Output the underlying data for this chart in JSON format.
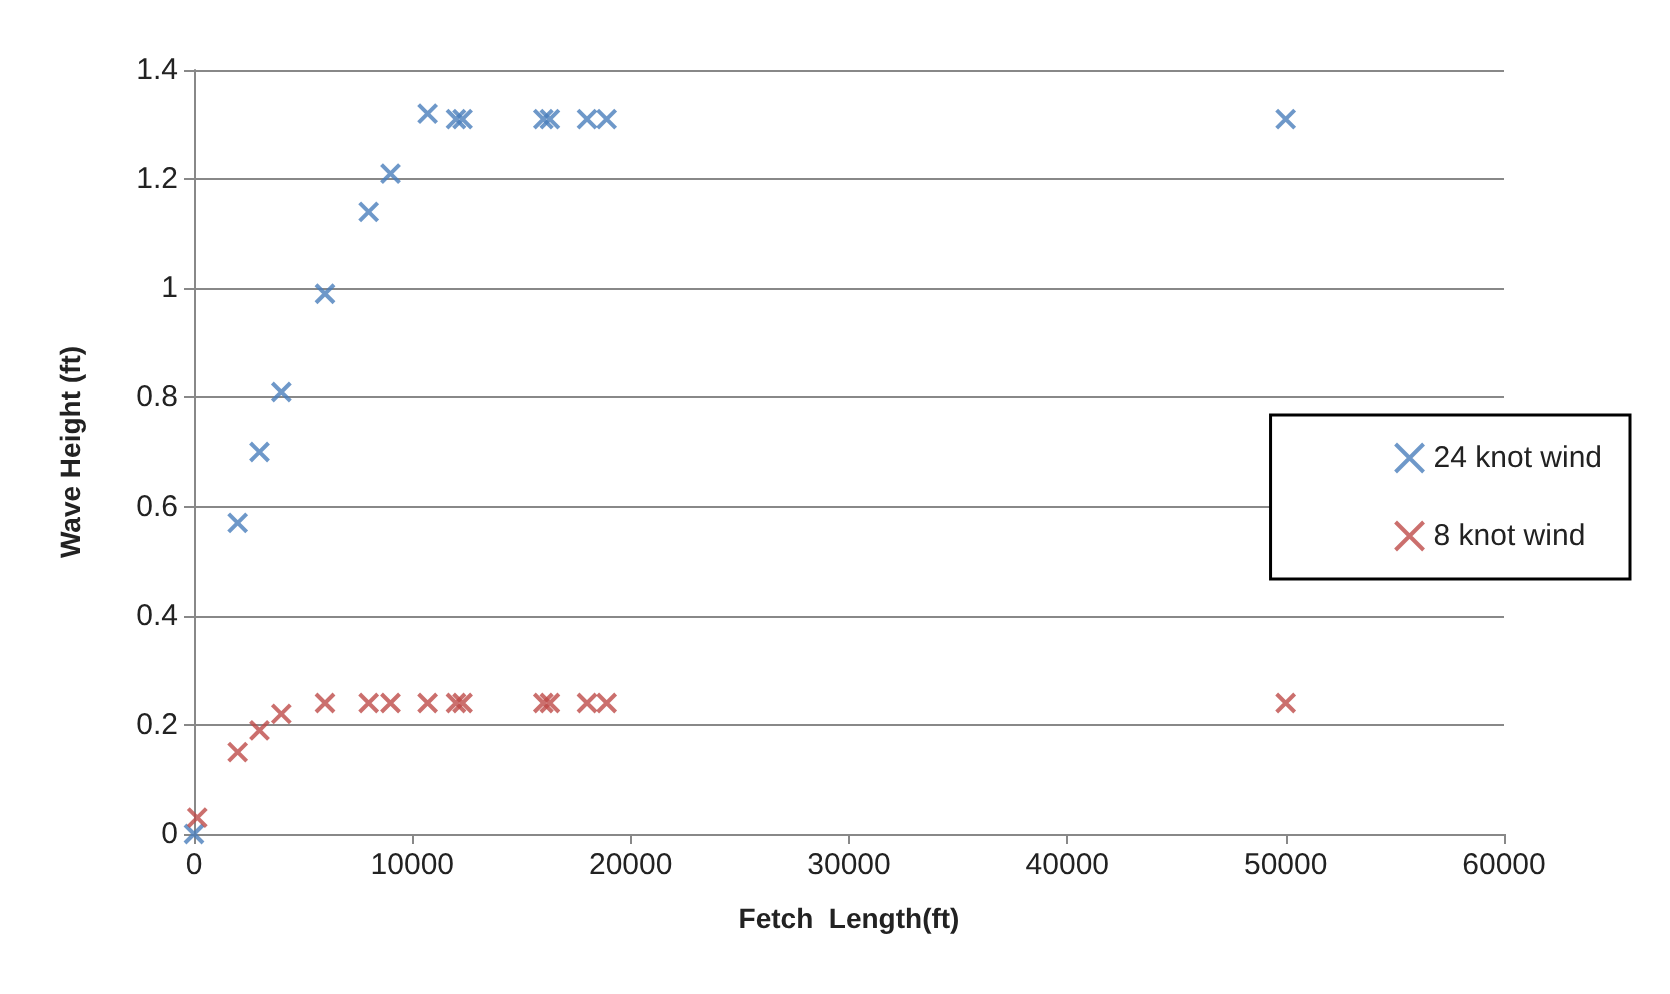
{
  "chart_data": {
    "type": "scatter",
    "xlabel": "Fetch  Length(ft)",
    "ylabel": "Wave Height (ft)",
    "xlim": [
      0,
      60000
    ],
    "xticks": [
      0,
      10000,
      20000,
      30000,
      40000,
      50000,
      60000
    ],
    "ylim": [
      0,
      1.4
    ],
    "yticks": [
      0,
      0.2,
      0.4,
      0.6,
      0.8,
      1,
      1.2,
      1.4
    ],
    "grid": "y",
    "legend": "right",
    "marker": "cross",
    "series": [
      {
        "name": "24 knot wind",
        "color": "#4a7ebb",
        "x": [
          0,
          2000,
          3000,
          4000,
          6000,
          8000,
          9000,
          10700,
          12000,
          12300,
          16000,
          16300,
          18000,
          18900,
          50000
        ],
        "values": [
          0,
          0.57,
          0.7,
          0.81,
          0.99,
          1.14,
          1.21,
          1.32,
          1.31,
          1.31,
          1.31,
          1.31,
          1.31,
          1.31,
          1.31
        ]
      },
      {
        "name": "8 knot wind",
        "color": "#be4b48",
        "x": [
          150,
          2000,
          3000,
          4000,
          6000,
          8000,
          9000,
          10700,
          12000,
          12300,
          16000,
          16300,
          18000,
          18900,
          50000
        ],
        "values": [
          0.03,
          0.15,
          0.19,
          0.22,
          0.24,
          0.24,
          0.24,
          0.24,
          0.24,
          0.24,
          0.24,
          0.24,
          0.24,
          0.24,
          0.24
        ]
      }
    ]
  }
}
